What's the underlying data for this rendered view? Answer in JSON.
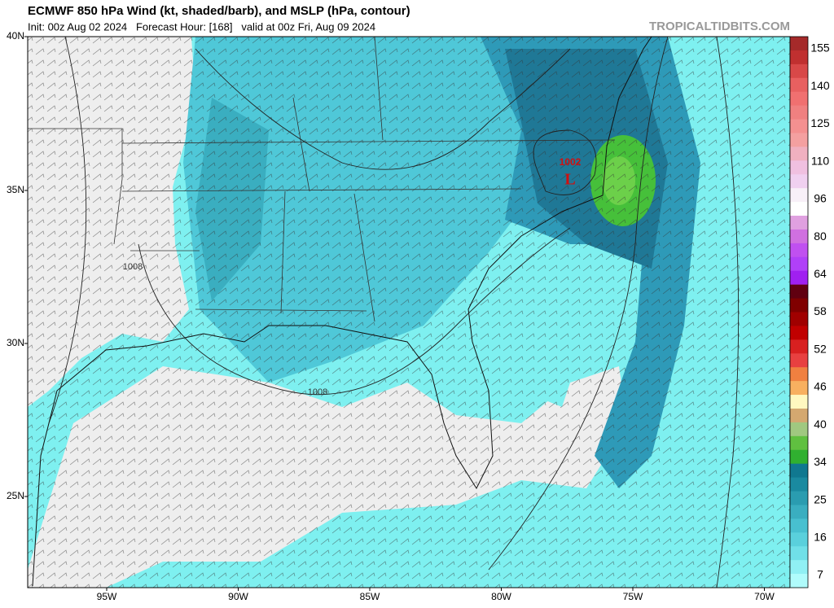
{
  "header": {
    "title": "ECMWF 850 hPa Wind (kt, shaded/barb), and MSLP (hPa, contour)",
    "subtitle": "Init: 00z Aug 02 2024   Forecast Hour: [168]   valid at 00z Fri, Aug 09 2024",
    "site": "TROPICALTIDBITS.COM"
  },
  "map": {
    "lat_labels": [
      "40N",
      "35N",
      "30N",
      "25N"
    ],
    "lon_labels": [
      "95W",
      "90W",
      "85W",
      "80W",
      "75W",
      "70W"
    ],
    "contour_labels": [
      "1008",
      "1008",
      "1002"
    ],
    "low_label": "L"
  },
  "colorbar": {
    "labels": [
      155,
      140,
      125,
      110,
      96,
      80,
      64,
      58,
      52,
      46,
      40,
      34,
      25,
      16,
      7
    ],
    "colors": [
      "#a52a2a",
      "#c03030",
      "#d84848",
      "#e86060",
      "#f07070",
      "#f08080",
      "#f49090",
      "#f4a0a0",
      "#f0b0c0",
      "#f0c0e0",
      "#f0d0f0",
      "#f8f0f8",
      "#ffffff",
      "#e0a0e0",
      "#d070e0",
      "#c050f0",
      "#b040f8",
      "#a020f0",
      "#600010",
      "#800000",
      "#a00000",
      "#c00000",
      "#d82020",
      "#e84040",
      "#f08040",
      "#f8b060",
      "#fff8c0",
      "#d4a870",
      "#a0c880",
      "#60c040",
      "#30b030",
      "#107890",
      "#1a8aa0",
      "#2a9cb0",
      "#3aaec0",
      "#48c0d0",
      "#5ad0dc",
      "#70e0e8",
      "#90f0f4",
      "#b0fcfc"
    ]
  }
}
